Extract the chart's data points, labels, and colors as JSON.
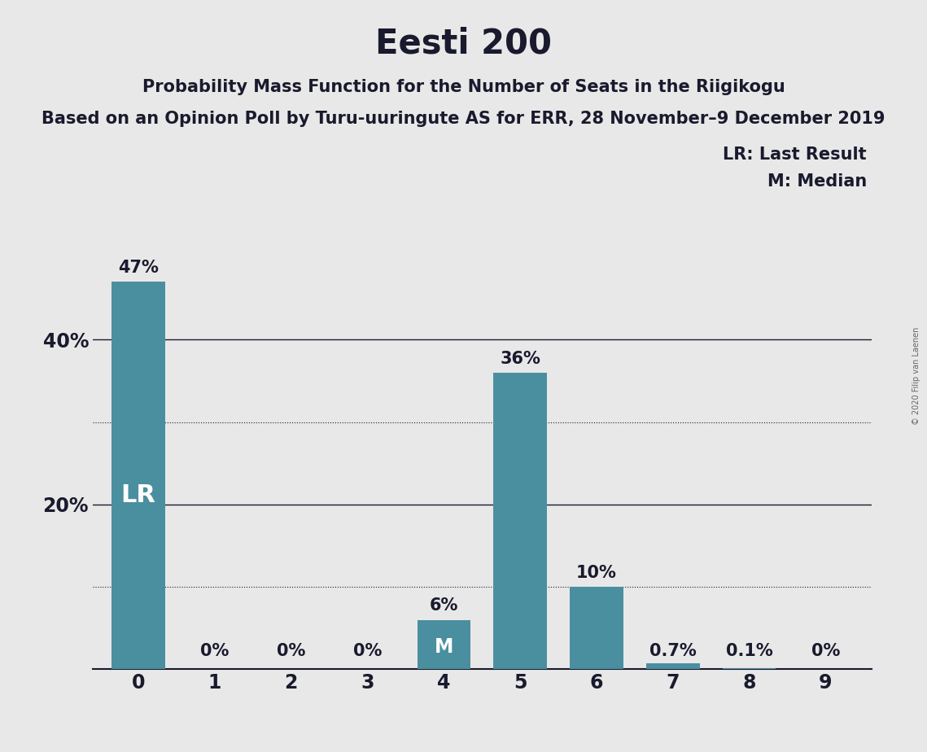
{
  "title": "Eesti 200",
  "subtitle1": "Probability Mass Function for the Number of Seats in the Riigikogu",
  "subtitle2": "Based on an Opinion Poll by Turu-uuringute AS for ERR, 28 November–9 December 2019",
  "copyright": "© 2020 Filip van Laenen",
  "legend_lr": "LR: Last Result",
  "legend_m": "M: Median",
  "categories": [
    0,
    1,
    2,
    3,
    4,
    5,
    6,
    7,
    8,
    9
  ],
  "values": [
    47,
    0,
    0,
    0,
    6,
    36,
    10,
    0.7,
    0.1,
    0
  ],
  "labels": [
    "47%",
    "0%",
    "0%",
    "0%",
    "6%",
    "36%",
    "10%",
    "0.7%",
    "0.1%",
    "0%"
  ],
  "bar_color": "#4a8fa0",
  "background_color": "#e8e8e8",
  "text_color": "#1a1a2e",
  "label_color_inside": "#ffffff",
  "solid_yticks": [
    20,
    40
  ],
  "dotted_yticks": [
    10,
    30
  ],
  "ylim": [
    0,
    52
  ],
  "lr_bar": 0,
  "median_bar": 4,
  "title_fontsize": 30,
  "subtitle1_fontsize": 15,
  "subtitle2_fontsize": 15,
  "label_fontsize": 15,
  "tick_fontsize": 17,
  "legend_fontsize": 15,
  "lr_fontsize": 22,
  "m_fontsize": 17
}
